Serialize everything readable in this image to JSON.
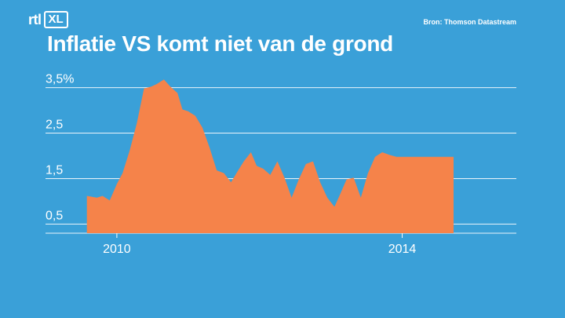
{
  "brand": {
    "logo_main": "rtl",
    "logo_box": "XL"
  },
  "source": "Bron: Thomson Datastream",
  "colors": {
    "background": "#3aa0d8",
    "area": "#f5834a",
    "grid": "#ffffff",
    "text": "#ffffff"
  },
  "chart_data": {
    "type": "area",
    "title": "Inflatie VS komt niet van de grond",
    "y_ticks": [
      {
        "value": 0.5,
        "label": "0,5"
      },
      {
        "value": 1.5,
        "label": "1,5"
      },
      {
        "value": 2.5,
        "label": "2,5"
      },
      {
        "value": 3.5,
        "label": "3,5%"
      }
    ],
    "x_ticks": [
      {
        "value": 2010,
        "label": "2010"
      },
      {
        "value": 2014,
        "label": "2014"
      }
    ],
    "ylim": [
      0.3,
      3.7
    ],
    "xlim": [
      2009.0,
      2015.6
    ],
    "grid": true,
    "series": [
      {
        "x": [
          2009.58,
          2009.72,
          2009.8,
          2009.9,
          2010.0,
          2010.08,
          2010.18,
          2010.28,
          2010.38,
          2010.48,
          2010.56,
          2010.66,
          2010.75,
          2010.85,
          2010.92,
          2011.0,
          2011.1,
          2011.2,
          2011.3,
          2011.4,
          2011.5,
          2011.6,
          2011.7,
          2011.78,
          2011.88,
          2011.96,
          2012.05,
          2012.15,
          2012.25,
          2012.35,
          2012.45,
          2012.55,
          2012.65,
          2012.75,
          2012.85,
          2012.95,
          2013.05,
          2013.12,
          2013.22,
          2013.32,
          2013.42,
          2013.52,
          2013.62,
          2013.72,
          2013.82,
          2013.92,
          2014.02,
          2014.12,
          2014.2,
          2014.3,
          2014.4,
          2014.5,
          2014.6,
          2014.72
        ],
        "y": [
          1.12,
          1.08,
          1.12,
          1.02,
          1.38,
          1.62,
          2.12,
          2.72,
          3.48,
          3.52,
          3.58,
          3.68,
          3.52,
          3.38,
          3.02,
          2.98,
          2.88,
          2.62,
          2.18,
          1.68,
          1.62,
          1.42,
          1.68,
          1.88,
          2.08,
          1.78,
          1.72,
          1.58,
          1.88,
          1.52,
          1.08,
          1.48,
          1.82,
          1.88,
          1.42,
          1.08,
          0.88,
          1.12,
          1.48,
          1.52,
          1.08,
          1.62,
          1.98,
          2.08,
          2.02,
          1.98,
          1.98,
          1.98,
          1.98,
          1.98,
          1.98,
          1.98,
          1.98,
          1.98
        ]
      }
    ]
  }
}
